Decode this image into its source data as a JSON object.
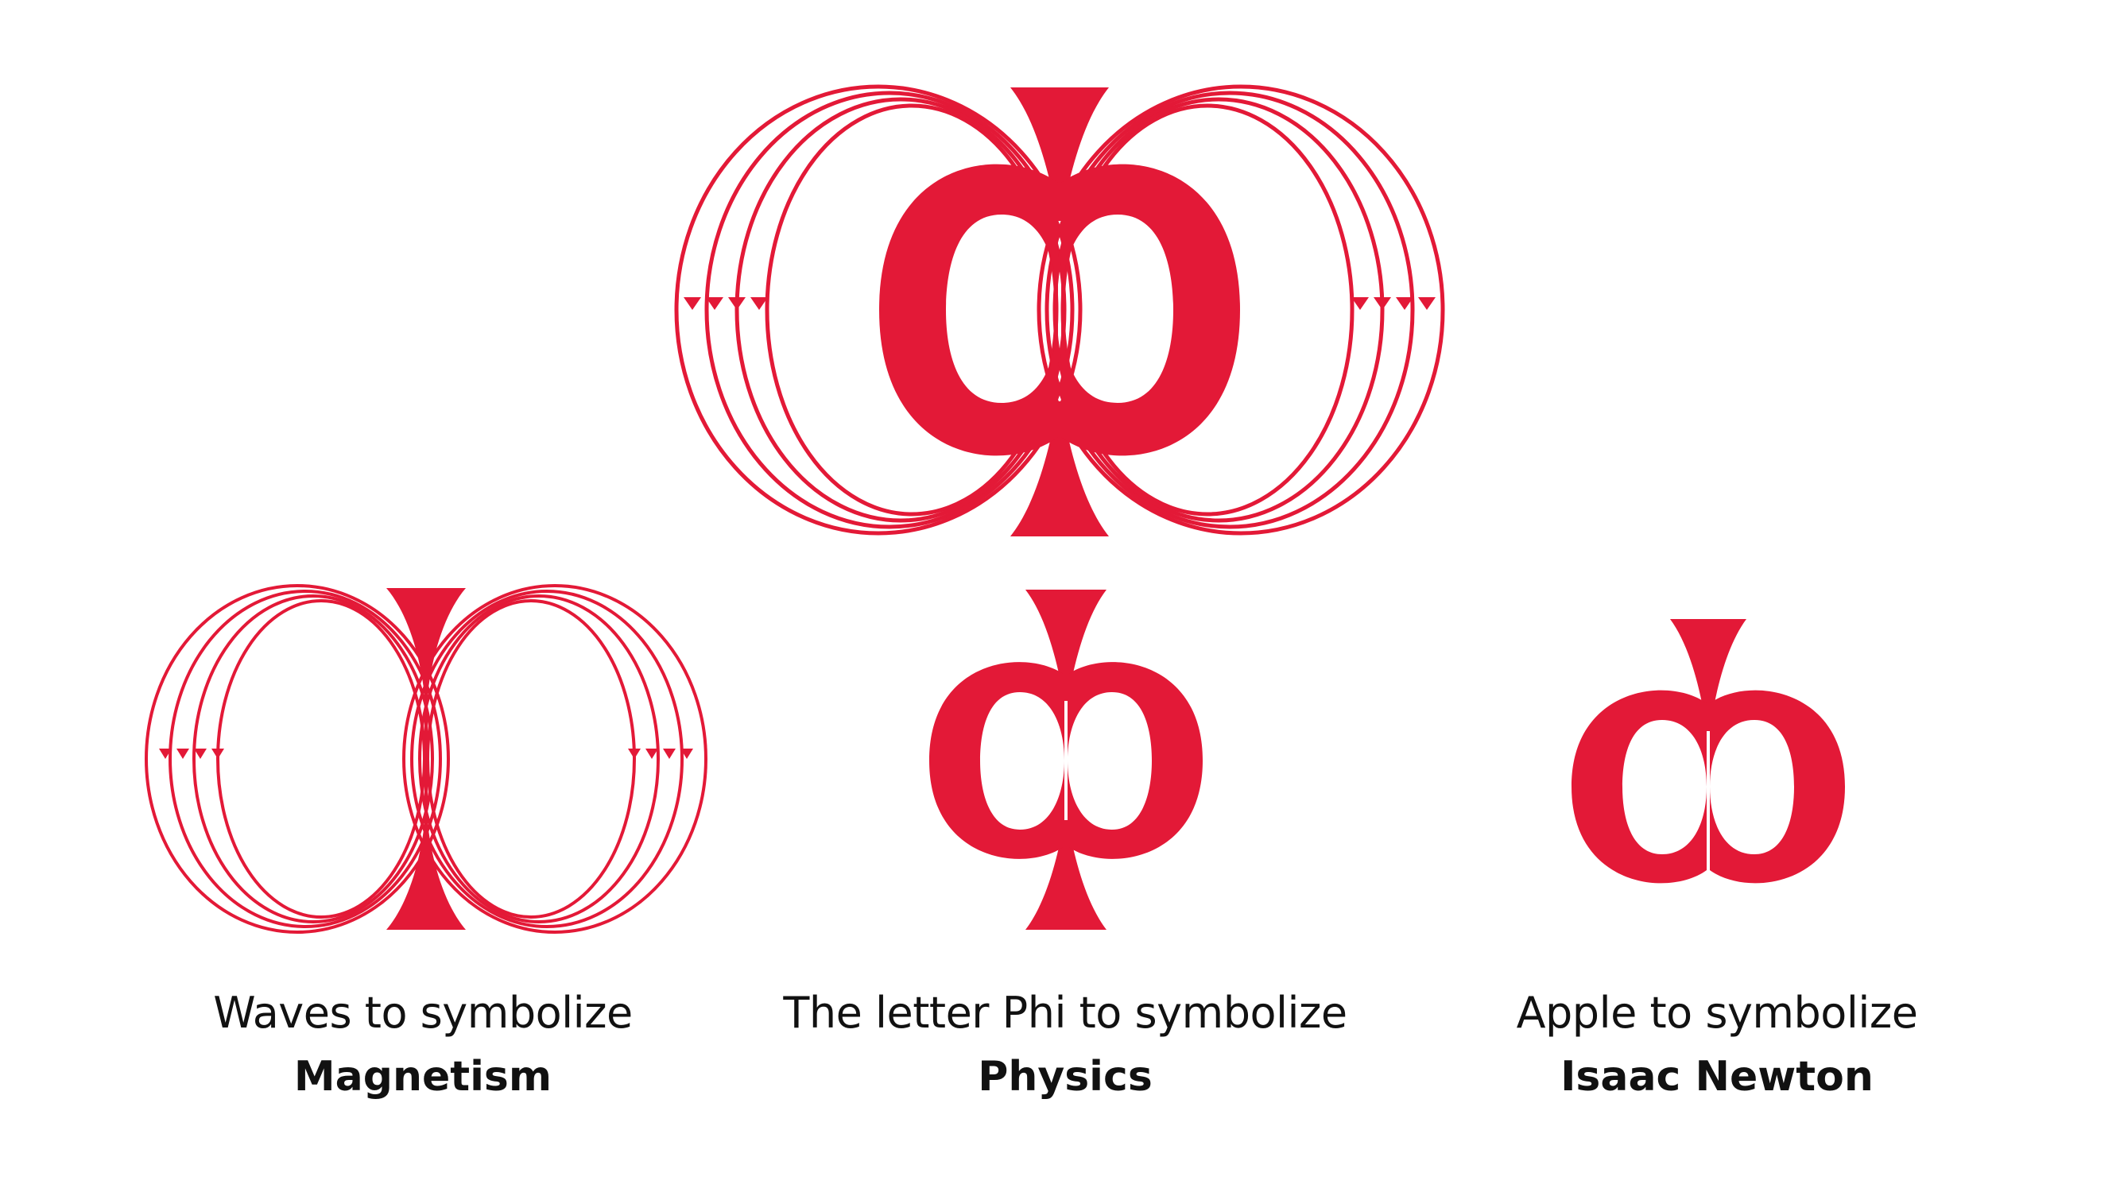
{
  "accent_color": "#E31937",
  "logo": {
    "name": "magnetic-phi-apple-logo"
  },
  "concepts": [
    {
      "symbol": "magnetic-waves-icon",
      "caption": "Waves to symbolize",
      "subject": "Magnetism"
    },
    {
      "symbol": "phi-letter-icon",
      "caption": "The letter Phi to symbolize",
      "subject": "Physics"
    },
    {
      "symbol": "apple-icon",
      "caption": "Apple to symbolize",
      "subject": "Isaac Newton"
    }
  ]
}
